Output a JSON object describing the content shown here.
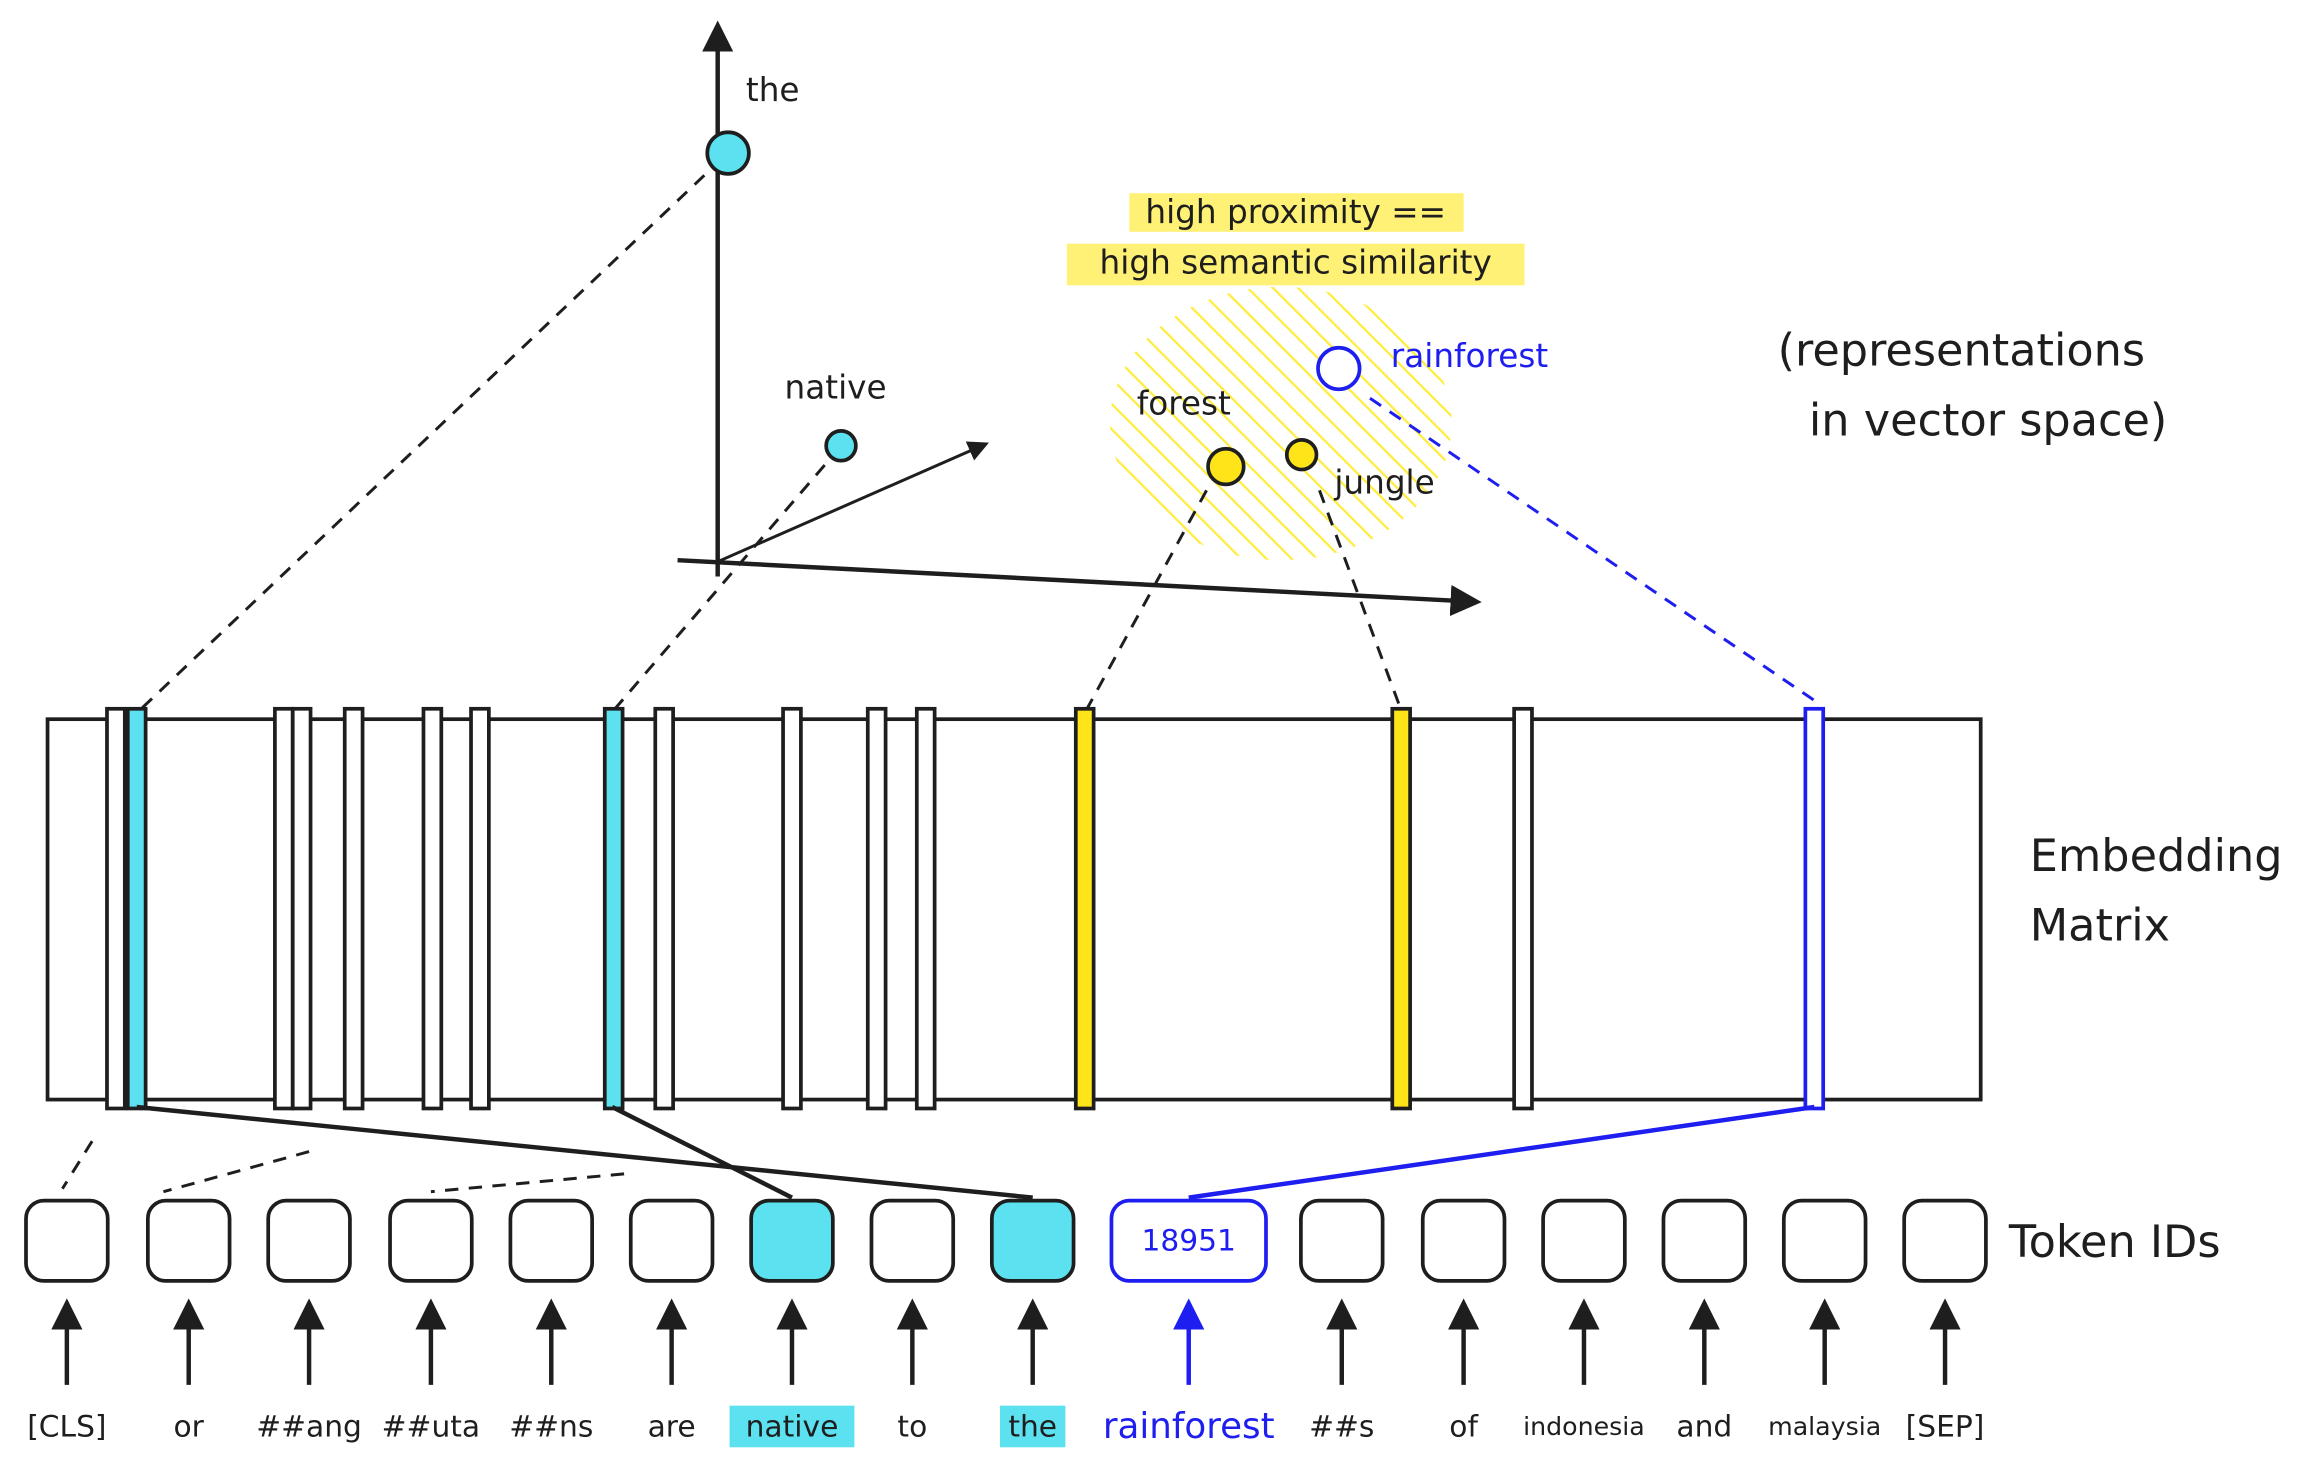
{
  "vector_space": {
    "caption": [
      "(representations",
      "in vector space)"
    ],
    "highlight": [
      "high proximity ==",
      "high semantic similarity"
    ],
    "points": [
      {
        "label": "the"
      },
      {
        "label": "native"
      },
      {
        "label": "forest"
      },
      {
        "label": "jungle"
      },
      {
        "label": "rainforest"
      }
    ]
  },
  "embedding_matrix": {
    "label": [
      "Embedding",
      "Matrix"
    ]
  },
  "token_ids": {
    "label": "Token IDs",
    "shown_id": "18951"
  },
  "tokens": [
    "[CLS]",
    "or",
    "##ang",
    "##uta",
    "##ns",
    "are",
    "native",
    "to",
    "the",
    "rainforest",
    "##s",
    "of",
    "indonesia",
    "and",
    "malaysia",
    "[SEP]"
  ]
}
